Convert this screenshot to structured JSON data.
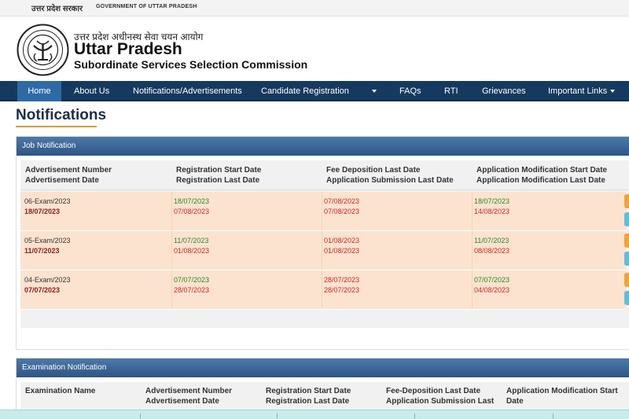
{
  "topbar": {
    "gov_hindi": "उत्तर प्रदेश सरकार",
    "gov_english": "GOVERNMENT OF UTTAR PRADESH"
  },
  "header": {
    "org_hindi": "उत्तर प्रदेश अधीनस्थ सेवा चयन आयोग",
    "org_title": "Uttar Pradesh",
    "org_subtitle": "Subordinate Services Selection Commission"
  },
  "nav": {
    "home": "Home",
    "about": "About Us",
    "notifications": "Notifications/Advertisements",
    "candidate": "Candidate Registration",
    "faqs": "FAQs",
    "rti": "RTI",
    "grievances": "Grievances",
    "important_links": "Important Links"
  },
  "page_title": "Notifications",
  "job_panel": {
    "title": "Job Notification",
    "headers": [
      [
        "Advertisement Number",
        "Advertisement Date"
      ],
      [
        "Registration Start Date",
        "Registration Last Date"
      ],
      [
        "Fee Deposition Last Date",
        "Application Submission Last Date"
      ],
      [
        "Application Modification Start Date",
        "Application Modification Last Date"
      ]
    ],
    "rows": [
      {
        "adv_no": "06-Exam/2023",
        "adv_date": "18/07/2023",
        "reg_start": "18/07/2023",
        "reg_last": "07/08/2023",
        "fee_last": "07/08/2023",
        "sub_last": "07/08/2023",
        "mod_start": "18/07/2023",
        "mod_last": "14/08/2023"
      },
      {
        "adv_no": "05-Exam/2023",
        "adv_date": "11/07/2023",
        "reg_start": "11/07/2023",
        "reg_last": "01/08/2023",
        "fee_last": "01/08/2023",
        "sub_last": "01/08/2023",
        "mod_start": "11/07/2023",
        "mod_last": "08/08/2023"
      },
      {
        "adv_no": "04-Exam/2023",
        "adv_date": "07/07/2023",
        "reg_start": "07/07/2023",
        "reg_last": "28/07/2023",
        "fee_last": "28/07/2023",
        "sub_last": "28/07/2023",
        "mod_start": "07/07/2023",
        "mod_last": "04/08/2023"
      }
    ]
  },
  "exam_panel": {
    "title": "Examination Notification",
    "headers": [
      [
        "Examination Name"
      ],
      [
        "Advertisement Number",
        "Advertisement Date"
      ],
      [
        "Registration Start Date",
        "Registration Last Date"
      ],
      [
        "Fee-Deposition Last Date",
        "Application Submission Last"
      ],
      [
        "Application Modification Start",
        "Date"
      ]
    ]
  },
  "colors": {
    "nav_bg": "#163a5f",
    "accent": "#e39a2a",
    "row_bg": "#fbe3cf",
    "start_date": "#2a8a2a",
    "end_date": "#c62828"
  }
}
